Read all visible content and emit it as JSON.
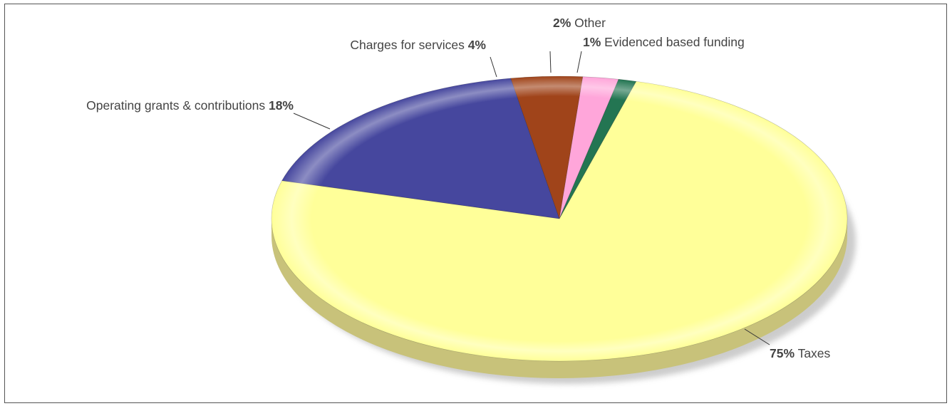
{
  "chart_data": {
    "type": "pie",
    "title": "",
    "slices": [
      {
        "label": "Taxes",
        "value": 75,
        "pct_text": "75%",
        "color": "#FFFF99",
        "side_color": "#C8C27A"
      },
      {
        "label": "Operating grants & contributions",
        "value": 18,
        "pct_text": "18%",
        "color": "#46479E",
        "side_color": "#2E2F6E"
      },
      {
        "label": "Charges for services",
        "value": 4,
        "pct_text": "4%",
        "color": "#A0441A",
        "side_color": "#6E2E10"
      },
      {
        "label": "Other",
        "value": 2,
        "pct_text": "2%",
        "color": "#FFA6DA",
        "side_color": "#C07AA4"
      },
      {
        "label": "Evidenced based funding",
        "value": 1,
        "pct_text": "1%",
        "color": "#237552",
        "side_color": "#154A33"
      }
    ],
    "style": "3d-tilted",
    "legend": "none"
  }
}
